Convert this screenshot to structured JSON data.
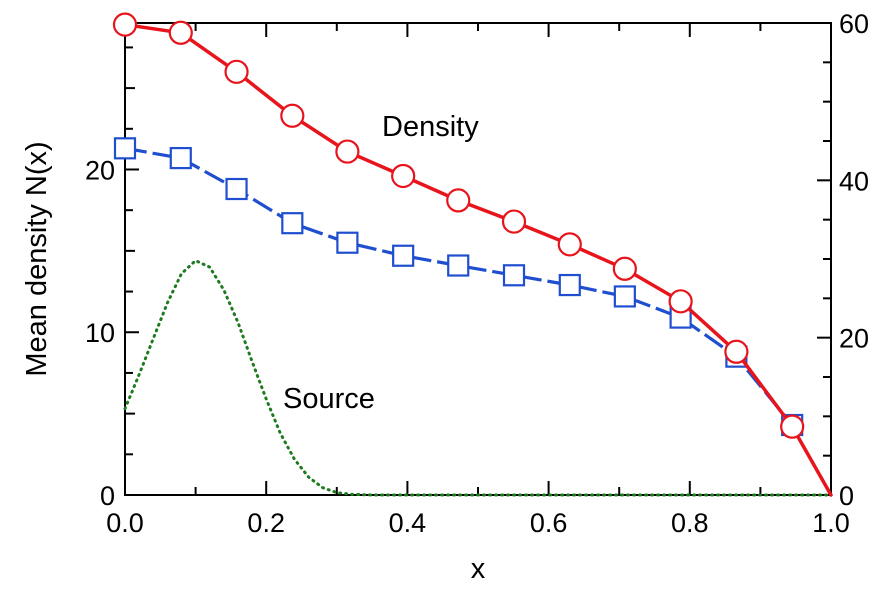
{
  "chart_data": {
    "type": "line",
    "title": "",
    "xlabel": "x",
    "ylabel": "Mean density N(x)",
    "xlim": [
      0.0,
      1.0
    ],
    "ylim": [
      0,
      29
    ],
    "y2lim": [
      0,
      60
    ],
    "grid": false,
    "legend": "none",
    "x_ticks": [
      "0.0",
      "0.2",
      "0.4",
      "0.6",
      "0.8",
      "1.0"
    ],
    "x_tick_values": [
      0.0,
      0.2,
      0.4,
      0.6,
      0.8,
      1.0
    ],
    "y_ticks": [
      "0",
      "10",
      "20"
    ],
    "y_tick_values": [
      0,
      10,
      20
    ],
    "y2_ticks": [
      "0",
      "20",
      "40",
      "60"
    ],
    "y2_tick_values": [
      0,
      20,
      40,
      60
    ],
    "annotations": {
      "density": "Density",
      "source": "Source"
    },
    "series": [
      {
        "axis": "left",
        "style": "solid",
        "marker": "circle",
        "color": "#e8141c",
        "x": [
          0.0,
          0.079,
          0.158,
          0.237,
          0.315,
          0.394,
          0.472,
          0.551,
          0.63,
          0.708,
          0.787,
          0.866,
          0.945,
          1.0
        ],
        "y": [
          28.9,
          28.4,
          26.0,
          23.3,
          21.1,
          19.6,
          18.1,
          16.8,
          15.4,
          13.9,
          11.9,
          8.8,
          4.2,
          0.0
        ]
      },
      {
        "axis": "left",
        "style": "dashed",
        "marker": "square",
        "color": "#1f4fcf",
        "x": [
          0.0,
          0.079,
          0.158,
          0.237,
          0.315,
          0.394,
          0.472,
          0.551,
          0.63,
          0.708,
          0.787,
          0.866,
          0.945
        ],
        "y": [
          21.3,
          20.7,
          18.8,
          16.7,
          15.5,
          14.7,
          14.1,
          13.5,
          12.9,
          12.2,
          10.9,
          8.5,
          4.3
        ]
      },
      {
        "axis": "left",
        "style": "dotted",
        "marker": "none",
        "color": "#1e7a1e",
        "x": [
          0.0,
          0.02,
          0.04,
          0.06,
          0.08,
          0.1,
          0.12,
          0.14,
          0.16,
          0.18,
          0.2,
          0.22,
          0.24,
          0.26,
          0.28,
          0.3,
          0.32,
          0.35,
          0.4,
          0.5,
          0.6,
          0.7,
          0.8,
          0.9,
          1.0
        ],
        "y": [
          5.3,
          7.4,
          9.6,
          11.8,
          13.6,
          14.4,
          14.0,
          12.6,
          10.6,
          8.2,
          5.9,
          3.8,
          2.2,
          1.1,
          0.45,
          0.15,
          0.04,
          0.0,
          0.0,
          0.0,
          0.0,
          0.0,
          0.0,
          0.0,
          0.0
        ]
      }
    ]
  }
}
